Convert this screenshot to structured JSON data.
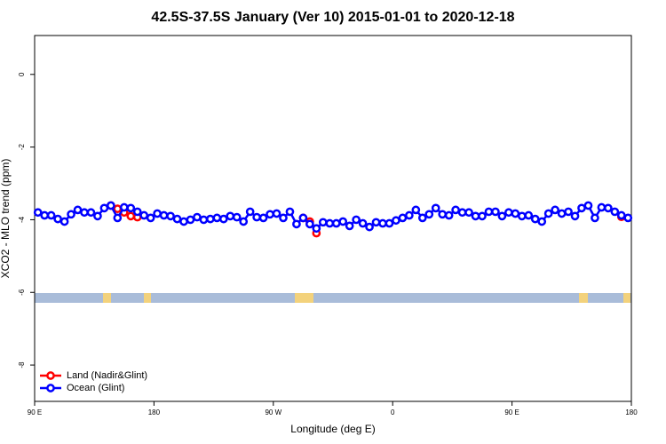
{
  "chart_data": {
    "type": "line",
    "title": "42.5S-37.5S January (Ver 10)   2015-01-01 to 2020-12-18",
    "xlabel": "Longitude (deg E)",
    "ylabel": "XCO2 - MLO trend (ppm)",
    "xlim": [
      90,
      540
    ],
    "ylim": [
      -9,
      1.07
    ],
    "xticks": [
      {
        "value": 90,
        "label": "90 E"
      },
      180,
      {
        "value": 270,
        "label": "90 W"
      },
      {
        "value": 360,
        "label": "0"
      },
      {
        "value": 450,
        "label": "90 E"
      },
      {
        "value": 540,
        "label": "180"
      }
    ],
    "yticks": [
      0,
      -2,
      -4,
      -6,
      -8
    ],
    "legend": "bottomleft",
    "x": [
      92.5,
      97.5,
      102.5,
      107.5,
      112.5,
      117.5,
      122.5,
      127.5,
      132.5,
      137.5,
      142.5,
      147.5,
      152.5,
      157.5,
      162.5,
      167.5,
      172.5,
      177.5,
      182.5,
      187.5,
      192.5,
      197.5,
      202.5,
      207.5,
      212.5,
      217.5,
      222.5,
      227.5,
      232.5,
      237.5,
      242.5,
      247.5,
      252.5,
      257.5,
      262.5,
      267.5,
      272.5,
      277.5,
      282.5,
      287.5,
      292.5,
      297.5,
      302.5,
      307.5,
      312.5,
      317.5,
      322.5,
      327.5,
      332.5,
      337.5,
      342.5,
      347.5,
      352.5,
      357.5,
      362.5,
      367.5,
      372.5,
      377.5,
      382.5,
      387.5,
      392.5,
      397.5,
      402.5,
      407.5,
      412.5,
      417.5,
      422.5,
      427.5,
      432.5,
      437.5,
      442.5,
      447.5,
      452.5,
      457.5,
      462.5,
      467.5,
      472.5,
      477.5,
      482.5,
      487.5,
      492.5,
      497.5,
      502.5,
      507.5,
      512.5,
      517.5,
      522.5,
      527.5,
      532.5,
      537.5
    ],
    "series": [
      {
        "name": "Land (Nadir&Glint)",
        "color": "#ff0000",
        "values": [
          null,
          null,
          null,
          null,
          null,
          null,
          null,
          null,
          null,
          null,
          null,
          -3.61,
          -3.7,
          -3.8,
          -3.9,
          -3.93,
          null,
          null,
          null,
          null,
          null,
          null,
          null,
          null,
          null,
          null,
          null,
          null,
          null,
          null,
          null,
          null,
          null,
          null,
          null,
          null,
          null,
          null,
          null,
          null,
          -3.95,
          -4.05,
          -4.37,
          null,
          null,
          null,
          null,
          null,
          null,
          null,
          null,
          null,
          null,
          null,
          null,
          null,
          null,
          null,
          null,
          null,
          null,
          null,
          null,
          null,
          null,
          null,
          null,
          null,
          null,
          null,
          null,
          null,
          null,
          null,
          null,
          null,
          null,
          null,
          null,
          null,
          null,
          null,
          null,
          null,
          null,
          null,
          null,
          null,
          -3.92,
          null
        ]
      },
      {
        "name": "Ocean (Glint)",
        "color": "#0000ff",
        "values": [
          -3.8,
          -3.88,
          -3.88,
          -3.98,
          -4.05,
          -3.85,
          -3.73,
          -3.8,
          -3.8,
          -3.9,
          -3.68,
          -3.61,
          -3.95,
          -3.66,
          -3.68,
          -3.78,
          -3.88,
          -3.95,
          -3.83,
          -3.88,
          -3.9,
          -3.98,
          -4.05,
          -4.0,
          -3.93,
          -4.0,
          -3.98,
          -3.95,
          -3.98,
          -3.9,
          -3.93,
          -4.05,
          -3.78,
          -3.93,
          -3.95,
          -3.85,
          -3.83,
          -3.95,
          -3.78,
          -4.12,
          -3.95,
          -4.12,
          -4.24,
          -4.07,
          -4.1,
          -4.1,
          -4.05,
          -4.17,
          -4.0,
          -4.1,
          -4.2,
          -4.07,
          -4.1,
          -4.1,
          -4.02,
          -3.95,
          -3.88,
          -3.73,
          -3.95,
          -3.85,
          -3.68,
          -3.85,
          -3.88,
          -3.73,
          -3.8,
          -3.8,
          -3.9,
          -3.9,
          -3.78,
          -3.78,
          -3.9,
          -3.8,
          -3.83,
          -3.9,
          -3.88,
          -3.98,
          -4.05,
          -3.83,
          -3.73,
          -3.83,
          -3.78,
          -3.9,
          -3.68,
          -3.61,
          -3.95,
          -3.66,
          -3.68,
          -3.78,
          -3.88,
          -3.95
        ]
      }
    ]
  }
}
